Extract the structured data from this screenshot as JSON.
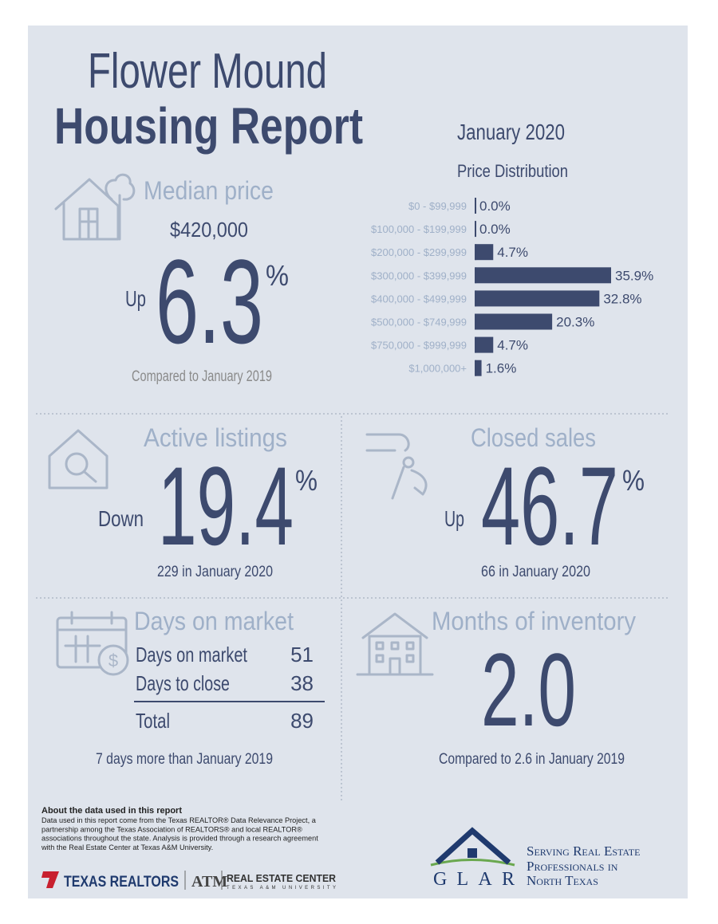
{
  "header": {
    "title_line1": "Flower Mound",
    "title_line2": "Housing Report",
    "date": "January 2020"
  },
  "median": {
    "label": "Median price",
    "price": "$420,000",
    "direction": "Up",
    "change": "6.3",
    "unit": "%",
    "note": "Compared to January 2019"
  },
  "chart_data": {
    "type": "bar",
    "orientation": "horizontal",
    "title": "Price Distribution",
    "color": "#3d4a6e",
    "categories": [
      "$0 - $99,999",
      "$100,000 - $199,999",
      "$200,000 - $299,999",
      "$300,000 - $399,999",
      "$400,000 - $499,999",
      "$500,000 - $749,999",
      "$750,000 - $999,999",
      "$1,000,000+"
    ],
    "values": [
      0,
      0,
      4.7,
      35.9,
      32.8,
      20.3,
      4.7,
      1.6
    ],
    "value_labels": [
      "0.0%",
      "0.0%",
      "4.7%",
      "35.9%",
      "32.8%",
      "20.3%",
      "4.7%",
      "1.6%"
    ]
  },
  "active_listings": {
    "label": "Active listings",
    "direction": "Down",
    "change": "19.4",
    "unit": "%",
    "note": "229 in January 2020"
  },
  "closed_sales": {
    "label": "Closed sales",
    "direction": "Up",
    "change": "46.7",
    "unit": "%",
    "note": "66 in January 2020"
  },
  "days_on_market": {
    "label": "Days on market",
    "rows": [
      [
        "Days on market",
        "51"
      ],
      [
        "Days to close",
        "38"
      ]
    ],
    "total": [
      "Total",
      "89"
    ],
    "note": "7 days more than January 2019"
  },
  "months_inventory": {
    "label": "Months of inventory",
    "value": "2.0",
    "note": "Compared to 2.6 in January 2019"
  },
  "footer": {
    "about_title": "About the data used in this report",
    "about_lines": [
      "Data used in this report come from the Texas REALTOR® Data Relevance Project, a",
      "partnership among the Texas Association of REALTORS® and local REALTOR®",
      "associations throughout the state. Analysis is provided through a research agreement",
      "with the Real Estate Center at Texas A&M University."
    ],
    "texas_realtors": "TEXAS REALTORS",
    "rec": "REAL ESTATE CENTER",
    "rec_sub": "TEXAS A&M UNIVERSITY",
    "glar": "GLAR",
    "tagline": [
      "Serving Real Estate",
      "Professionals in",
      "North Texas"
    ]
  }
}
